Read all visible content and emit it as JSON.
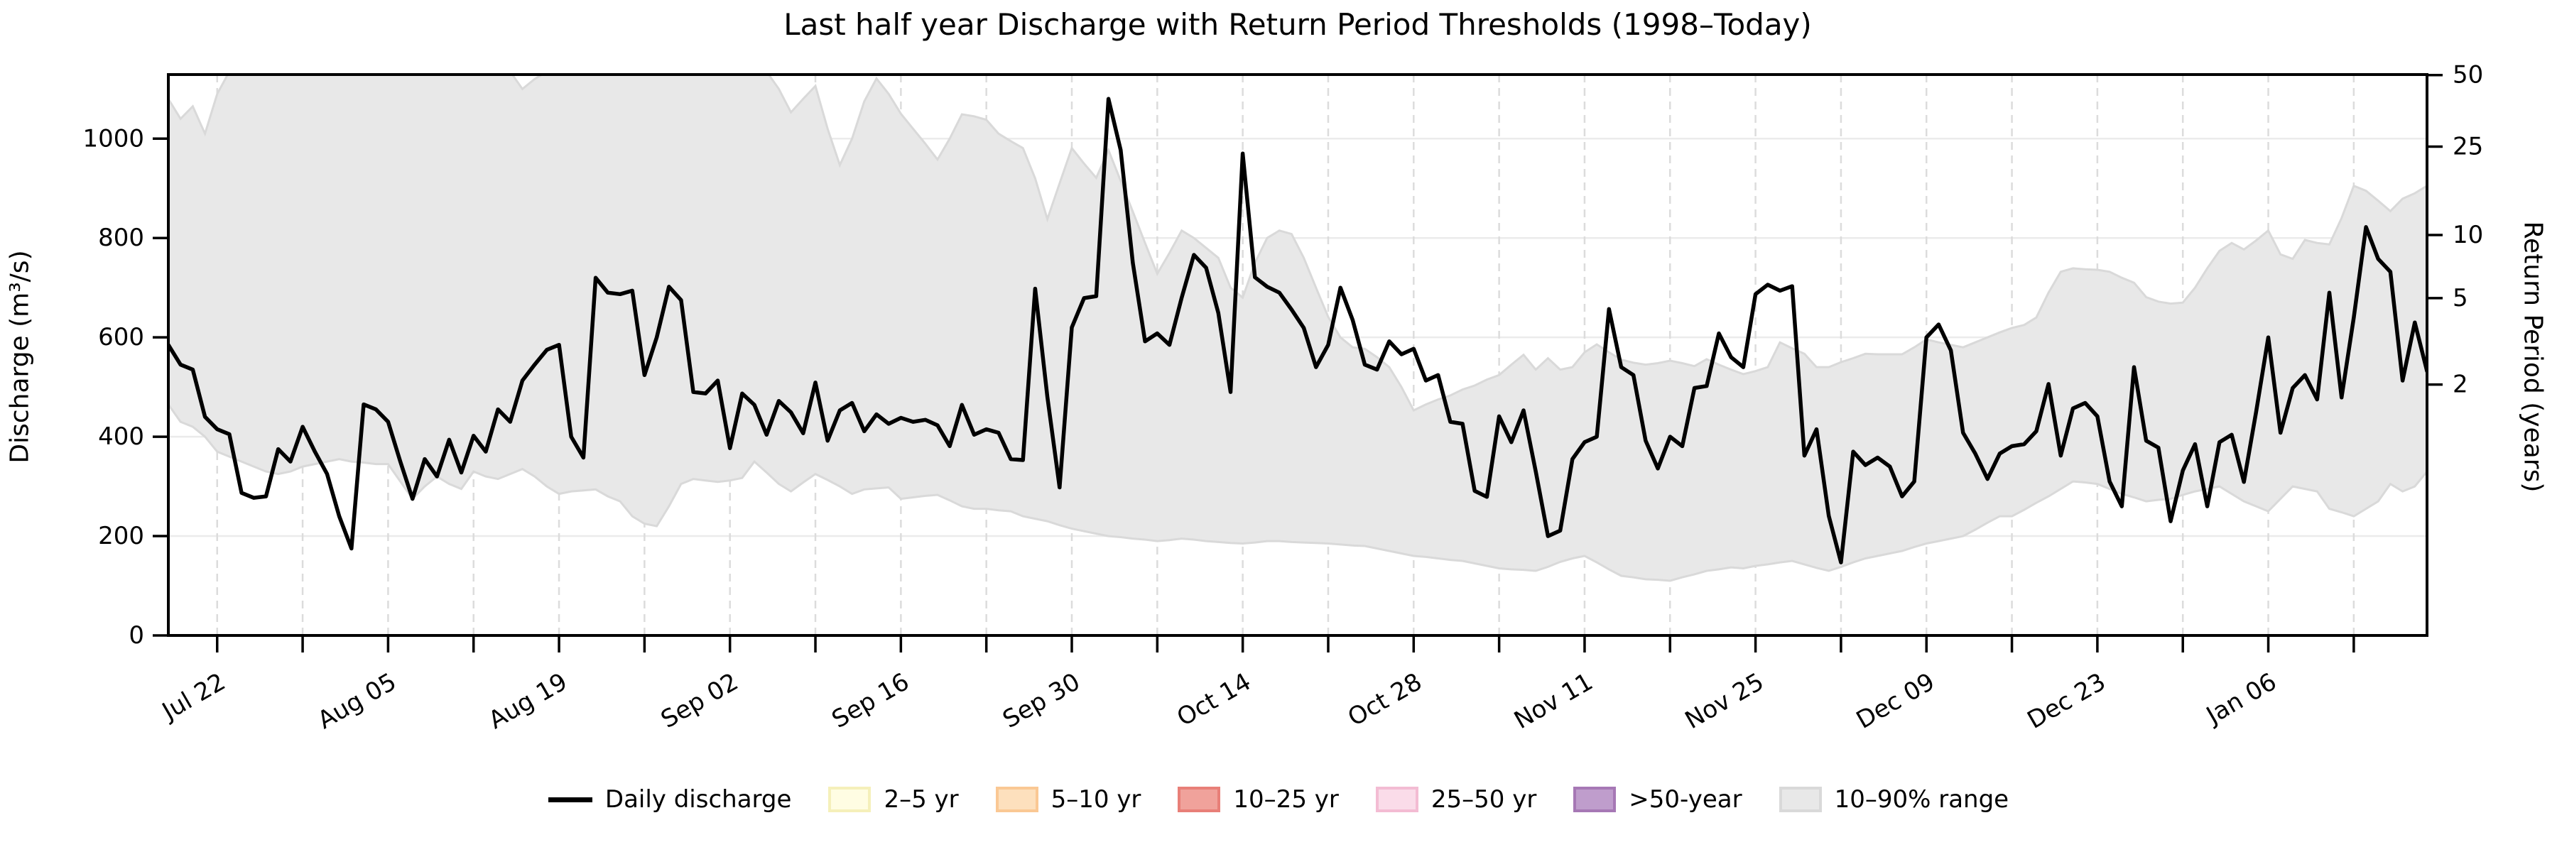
{
  "figure": {
    "title": "Last half year Discharge with Return Period Thresholds (1998–Today)",
    "ylabel_left": "Discharge (m³/s)",
    "ylabel_right": "Return Period (years)",
    "background_color": "#ffffff"
  },
  "chart_data": {
    "type": "line",
    "title": "Last half year Discharge with Return Period Thresholds (1998–Today)",
    "xlabel": "",
    "ylabel": "Discharge (m³/s)",
    "ylabel_right": "Return Period (years)",
    "ylim": [
      0,
      1129
    ],
    "yticks": [
      0,
      200,
      400,
      600,
      800,
      1000
    ],
    "grid": "on",
    "legend_position": "bottom-center",
    "x_frequency": "daily",
    "x_start": "Jul 18",
    "x_end": "Jan 19",
    "x_tick_labels": [
      "Jul 22",
      "Aug 05",
      "Aug 19",
      "Sep 02",
      "Sep 16",
      "Sep 30",
      "Oct 14",
      "Oct 28",
      "Nov 11",
      "Nov 25",
      "Dec 09",
      "Dec 23",
      "Jan 06"
    ],
    "x_first_tick_day_index": 4,
    "x_minor_tick_interval_days": 7,
    "x_label_tick_interval_days": 14,
    "right_axis_ticks": [
      {
        "label": "2",
        "discharge_equivalent": 505
      },
      {
        "label": "5",
        "discharge_equivalent": 679
      },
      {
        "label": "10",
        "discharge_equivalent": 806
      },
      {
        "label": "25",
        "discharge_equivalent": 984
      },
      {
        "label": "50",
        "discharge_equivalent": 1128
      }
    ],
    "series": [
      {
        "name": "Daily discharge",
        "color": "#000000",
        "values": [
          585,
          545,
          535,
          440,
          415,
          405,
          287,
          277,
          280,
          375,
          350,
          420,
          370,
          325,
          240,
          175,
          465,
          455,
          430,
          350,
          275,
          355,
          320,
          394,
          328,
          402,
          370,
          455,
          430,
          513,
          545,
          575,
          585,
          400,
          358,
          720,
          690,
          687,
          694,
          524,
          600,
          702,
          675,
          490,
          487,
          513,
          377,
          487,
          464,
          404,
          472,
          449,
          407,
          509,
          392,
          453,
          468,
          411,
          445,
          426,
          438,
          430,
          434,
          423,
          381,
          464,
          404,
          415,
          408,
          355,
          353,
          698,
          480,
          298,
          620,
          679,
          683,
          1080,
          977,
          750,
          592,
          608,
          585,
          680,
          766,
          740,
          649,
          490,
          970,
          721,
          702,
          690,
          656,
          619,
          540,
          585,
          700,
          635,
          545,
          535,
          592,
          566,
          577,
          513,
          524,
          430,
          426,
          291,
          279,
          441,
          389,
          453,
          330,
          200,
          211,
          355,
          389,
          400,
          657,
          540,
          524,
          392,
          336,
          400,
          381,
          498,
          502,
          608,
          560,
          540,
          687,
          706,
          694,
          703,
          362,
          415,
          241,
          147,
          370,
          343,
          358,
          340,
          280,
          310,
          600,
          626,
          574,
          408,
          366,
          315,
          366,
          381,
          385,
          411,
          506,
          362,
          457,
          468,
          441,
          310,
          260,
          540,
          392,
          378,
          230,
          332,
          385,
          260,
          389,
          404,
          309,
          450,
          600,
          408,
          498,
          524,
          475,
          690,
          479,
          640,
          822,
          758,
          732,
          513,
          630,
          532
        ]
      }
    ],
    "band": {
      "name": "10–90% range",
      "fill": "#e8e8e8",
      "edge": "#d9d9d9",
      "upper": [
        1080,
        1040,
        1065,
        1010,
        1090,
        1135,
        1135,
        1135,
        1135,
        1135,
        1135,
        1135,
        1135,
        1135,
        1135,
        1135,
        1135,
        1135,
        1135,
        1135,
        1135,
        1135,
        1135,
        1135,
        1135,
        1135,
        1135,
        1135,
        1135,
        1100,
        1120,
        1135,
        1135,
        1135,
        1135,
        1135,
        1135,
        1135,
        1135,
        1135,
        1135,
        1135,
        1135,
        1135,
        1135,
        1135,
        1135,
        1135,
        1135,
        1135,
        1100,
        1053,
        1080,
        1106,
        1020,
        947,
        1000,
        1075,
        1121,
        1090,
        1050,
        1020,
        990,
        958,
        1000,
        1049,
        1045,
        1038,
        1010,
        995,
        981,
        920,
        838,
        910,
        981,
        950,
        921,
        977,
        915,
        853,
        790,
        728,
        770,
        815,
        800,
        780,
        760,
        700,
        680,
        750,
        800,
        815,
        808,
        760,
        700,
        641,
        600,
        580,
        577,
        560,
        540,
        500,
        453,
        465,
        475,
        483,
        495,
        503,
        515,
        524,
        545,
        565,
        535,
        558,
        535,
        540,
        570,
        586,
        570,
        555,
        549,
        545,
        548,
        553,
        548,
        542,
        556,
        545,
        535,
        526,
        532,
        540,
        590,
        578,
        567,
        540,
        540,
        550,
        558,
        567,
        566,
        566,
        566,
        580,
        596,
        590,
        585,
        580,
        590,
        600,
        610,
        619,
        625,
        640,
        690,
        732,
        739,
        737,
        736,
        732,
        720,
        710,
        681,
        672,
        668,
        670,
        700,
        739,
        774,
        790,
        777,
        795,
        815,
        767,
        758,
        796,
        790,
        787,
        840,
        905,
        895,
        875,
        854,
        879,
        890,
        905
      ],
      "lower": [
        465,
        430,
        420,
        400,
        370,
        360,
        350,
        340,
        330,
        325,
        330,
        340,
        345,
        350,
        355,
        350,
        348,
        345,
        345,
        310,
        275,
        300,
        320,
        305,
        295,
        330,
        320,
        315,
        325,
        335,
        320,
        300,
        285,
        290,
        292,
        294,
        280,
        270,
        240,
        225,
        220,
        260,
        305,
        315,
        312,
        309,
        312,
        317,
        350,
        328,
        305,
        290,
        308,
        325,
        313,
        300,
        285,
        294,
        296,
        298,
        275,
        278,
        281,
        283,
        272,
        260,
        255,
        255,
        252,
        250,
        240,
        235,
        230,
        222,
        215,
        210,
        205,
        200,
        198,
        195,
        193,
        190,
        192,
        195,
        193,
        190,
        188,
        186,
        185,
        187,
        190,
        190,
        188,
        187,
        186,
        185,
        183,
        181,
        180,
        175,
        170,
        165,
        160,
        158,
        155,
        152,
        150,
        145,
        140,
        135,
        133,
        132,
        130,
        138,
        148,
        155,
        160,
        147,
        133,
        120,
        117,
        113,
        112,
        110,
        117,
        123,
        130,
        133,
        137,
        135,
        140,
        143,
        147,
        150,
        143,
        136,
        130,
        138,
        147,
        155,
        160,
        165,
        170,
        178,
        185,
        190,
        195,
        200,
        213,
        227,
        240,
        240,
        253,
        267,
        280,
        295,
        310,
        308,
        305,
        295,
        285,
        278,
        270,
        273,
        275,
        283,
        290,
        295,
        300,
        285,
        270,
        260,
        250,
        275,
        300,
        295,
        290,
        255,
        248,
        240,
        255,
        270,
        305,
        290,
        300,
        330
      ]
    },
    "legend": [
      {
        "label": "Daily discharge",
        "type": "line",
        "color": "#000000"
      },
      {
        "label": "2–5 yr",
        "type": "patch",
        "fill": "#fffde3",
        "edge": "#f5f0ba"
      },
      {
        "label": "5–10 yr",
        "type": "patch",
        "fill": "#fde0bd",
        "edge": "#fac894"
      },
      {
        "label": "10–25 yr",
        "type": "patch",
        "fill": "#f0a29b",
        "edge": "#e87f78"
      },
      {
        "label": "25–50 yr",
        "type": "patch",
        "fill": "#fadce9",
        "edge": "#f3bcd3"
      },
      {
        "label": ">50-year",
        "type": "patch",
        "fill": "#bf9dcc",
        "edge": "#a678b5"
      },
      {
        "label": "10–90% range",
        "type": "patch",
        "fill": "#e8e8e8",
        "edge": "#d9d9d9"
      }
    ],
    "style": {
      "grid_h_color": "#ebebeb",
      "grid_v_color": "#dcdcdc",
      "spine_color": "#000000",
      "tick_font_px": 34,
      "line_width": 5.5
    }
  }
}
